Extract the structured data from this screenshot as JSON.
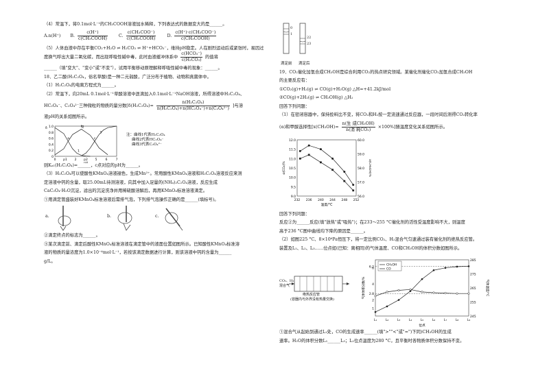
{
  "left": {
    "q4_intro": "（4）常温下，将0.1mol·L⁻¹的CH₃COOH溶液加水稀释，下列表达式的数据变大的是______。",
    "q4_opt_a": "A.n(H⁺)",
    "q4_opt_b_label": "B.",
    "q4_opt_b_num": "c(H⁺)",
    "q4_opt_b_den": "c(CH₃COOH)",
    "q4_opt_c_label": "C.",
    "q4_opt_c_num": "c(CH₃COO⁻)",
    "q4_opt_c_den": "c(CH₃COOH)",
    "q4_opt_d_label": "D.",
    "q4_opt_d_num": "c(H⁺)·c(CH₃COO⁻)",
    "q4_opt_d_den": "c(CH₃COOH)",
    "q5_line1": "（5）人体血液中存在平衡CO₂+H₂O ⇌ H₂CO₃ ⇌ H⁺+HCO₃⁻，维持pH稳定。人在剧烈运动后或紧张时，易因过度换气呼出大量二氧化碳，而出现呼吸性碱中毒，此时血液缓冲体系中",
    "q5_frac_num": "c(HCO₃⁻)",
    "q5_frac_den": "c(H₂CO₃)",
    "q5_line2": "的值将",
    "q5_line3": "______（填\"变大\"、\"变小\"或\"不变\"），试用平衡移动原理解释呼吸性碱中毒的现象：______。",
    "q18_title": "18．乙二酸(H₂C₂O₄，俗名草酸)是一种二元弱酸，广泛分布于植物、动物和真菌体中。",
    "q18_1": "（1）H₂C₂O₄的电离方程式为______。",
    "q18_2a": "（2）常温下，向20mL 0.1mol·L⁻¹草酸溶液中逐滴加入0.1mol·L⁻¹NaOH溶液，所得溶液中H₂C₂O₄、",
    "q18_2b": "HC₂O₄⁻、C₂O₄²⁻三种微粒的物质的量分数[δ(H₂C₂O₄)=",
    "q18_2b_num": "n(H₂C₂O₄)",
    "q18_2b_den": "n(H₂C₂O₄)+n(HC₂O₄⁻)+n(C₂O₄²⁻)",
    "q18_2c": "]与溶",
    "q18_2d": "液pH的关系如图所示。",
    "legend_title": "注：曲线1代表H₂C₂O₄",
    "legend_2": "曲线2代表HC₂O₄⁻",
    "legend_3": "曲线3代表C₂O₄²⁻",
    "q18_ka": "则Kₐ₁(H₂C₂O₄)=______，c点对应的pH为______。",
    "q18_3a": "（3）H₂C₂O₄可以使酸性KMnO₄溶液褪色，生成Mn²⁺。常用酸性KMnO₄溶液和H₂C₂O₄溶液反应来测",
    "q18_3b": "定溶液中钙的含量，取25.00mL待测溶液，向其中加入足量的(NH₄)₂C₂O₄溶液，反应生成",
    "q18_3c": "CaC₂O₄·H₂O沉淀，滤出的沉淀洗净并用稀硫酸溶解后，再用KMnO₄标准溶液滴定。",
    "q18_3d": "①用滴定管盛装好KMnO₄标准溶液后需排气泡，下列排气泡操作正确的是______(填标号)。",
    "img_a": "a.",
    "img_b": "b.",
    "img_c": "c.",
    "q18_3e": "②滴定终点的标志为______。",
    "q18_3f": "③某次滴定前、滴定后酸性KMnO₄标准溶液在滴定管中的液面位置如图所示。已知酸性KMnO₄标准溶",
    "q18_3g": "液的物质的量浓度为1.0×10⁻⁴mol·L⁻¹，若按该滴定数据进行计算，则该溶液中钙的含量为______",
    "q18_3h": "g/L。"
  },
  "right": {
    "burette_before": "滴定前",
    "burette_after": "滴定后",
    "burette_tick_0": "0",
    "burette_tick_1": "1",
    "burette_tick_22": "22",
    "burette_tick_23": "23",
    "q19_title": "19．CO₂催化加氢合成CH₃OH是综合利用CO₂的热点研究领域。某催化剂催化CO₂加氢合成CH₃OH",
    "q19_title2": "的主要反应有：",
    "r1": "①CO₂(g)+H₂(g) ⇌ CO(g)+H₂O(g) △H=+41.2kJ/mol",
    "r2": "②CO(g)+2H₂(g) ⇌ CH₃OH(g) △H₂",
    "q19_ask": "回答下列问题：",
    "q19_1a": "（1）在密闭容器中，保持投料比不变，将CO₂和H₂按一定流速通过反应器，一段时间后测得CO₂转化率",
    "q19_1b_pre": "(α)和甲醇选择性",
    "q19_1b_x": "x(CH₃OH)=",
    "q19_1b_num": "n(生 成CH₃OH)",
    "q19_1b_den": "n(消 耗CO₂)",
    "q19_1b_post": "×100%]随温度变化关系如图所示。",
    "q19_1c": "回答下列问题：",
    "q19_1d": "反应②为______反应(填\"放热\"或\"吸热\")；在233～255 °C催化剂的活性受温度影响不大，则温度",
    "q19_1e": "高于236 °C图中曲线均下降的原因是______。",
    "q19_2a": "（2）如图225 °C、8×10⁶Pa恒压下，将一定比例CO₂、H₂混合气匀速通过装有催化剂的绝热反应管。",
    "q19_2b": "装置及L₁、L₂、L₃……位点如(已知：离相同)的气体温度、CO和CH₃OH的体积分数如图所示。",
    "reactor_label": "绝热反应管",
    "reactor_note": "(容器内与外界没有热量交换)",
    "reactor_inlet": "CO₂、H₂",
    "reactor_inlet2": "混合气",
    "q19_2c": "①混合气从起始到通过L₁处，CO的生成速率______(填\">\"\"<\"或\"=\")下同)CH₃OH的生成",
    "q19_2d": "速率。H₂O的体积分数L₁______L₃；L₂位点温度为280 °C，且平衡时各物质体积分数保持不变。"
  },
  "chart_data": [
    {
      "type": "line",
      "title": "",
      "xlabel": "pH",
      "ylabel": "δ",
      "xlim": [
        0,
        7
      ],
      "ylim": [
        0,
        1.0
      ],
      "x_ticks": [
        "0",
        "p1",
        "2",
        "p2",
        "5",
        "6",
        "7"
      ],
      "y_ticks": [
        "0",
        "0.2",
        "0.4",
        "0.6",
        "0.8",
        "1.0"
      ],
      "point_labels": [
        "a",
        "b",
        "c"
      ],
      "series": [
        {
          "name": "1",
          "x": [
            0,
            1,
            1.5,
            2,
            2.5,
            3,
            3.5,
            4
          ],
          "y": [
            0.95,
            0.75,
            0.5,
            0.25,
            0.1,
            0.03,
            0.01,
            0
          ]
        },
        {
          "name": "2",
          "x": [
            0,
            1,
            1.5,
            2,
            3,
            4,
            4.5,
            5,
            6
          ],
          "y": [
            0.05,
            0.25,
            0.5,
            0.72,
            0.9,
            0.7,
            0.5,
            0.28,
            0.05
          ]
        },
        {
          "name": "3",
          "x": [
            3,
            3.5,
            4,
            4.5,
            5,
            5.5,
            6,
            7
          ],
          "y": [
            0.02,
            0.1,
            0.27,
            0.5,
            0.72,
            0.87,
            0.95,
            1.0
          ]
        }
      ]
    },
    {
      "type": "line",
      "title": "",
      "xlabel": "温度/°C",
      "ylabel": "α(CO₂)%",
      "y2label": "x(CH₃OH)%",
      "xlim": [
        232,
        252
      ],
      "ylim": [
        9.0,
        12.0
      ],
      "y2lim": [
        56.0,
        60.0
      ],
      "x_ticks": [
        "232",
        "236",
        "240",
        "244",
        "248",
        "252"
      ],
      "y_ticks": [
        "9.0",
        "9.5",
        "10.0",
        "10.5",
        "11.0",
        "11.5",
        "12.0"
      ],
      "y2_ticks": [
        "56.0",
        "57.0",
        "58.0",
        "59.0",
        "60.0"
      ],
      "series": [
        {
          "name": "α(CO₂)",
          "x": [
            233,
            236,
            240,
            244,
            248,
            251
          ],
          "y": [
            11.4,
            11.7,
            11.5,
            11.0,
            10.3,
            9.6
          ]
        },
        {
          "name": "x(CH₃OH)",
          "x": [
            233,
            236,
            240,
            244,
            248,
            251
          ],
          "y": [
            11.0,
            11.2,
            10.8,
            10.4,
            9.8,
            9.3
          ]
        }
      ]
    },
    {
      "type": "line",
      "title": "",
      "xlabel": "位点",
      "ylabel": "气体体积分数/%",
      "y2label": "气体温度/°C",
      "x_ticks": [
        "L₁",
        "L₂",
        "L₃",
        "L₄",
        "L₅",
        "L₆",
        "L₇",
        "L₈",
        "L₉"
      ],
      "y_ticks": [
        "1",
        "2",
        "2.8",
        "4",
        "6",
        "6.2"
      ],
      "y2_ticks": [
        "245",
        "255",
        "265",
        "275",
        "285"
      ],
      "series": [
        {
          "name": "CH₃OH",
          "x": [
            1,
            2,
            3,
            4,
            5,
            6,
            7,
            8,
            9
          ],
          "y": [
            0.5,
            1.2,
            2.0,
            3.1,
            4.6,
            5.7,
            6.0,
            6.15,
            6.2
          ]
        },
        {
          "name": "CO",
          "x": [
            1,
            2,
            3,
            4,
            5,
            6,
            7,
            8,
            9
          ],
          "y": [
            2.5,
            3.0,
            3.2,
            3.3,
            3.0,
            2.9,
            2.85,
            2.8,
            2.8
          ]
        }
      ]
    }
  ]
}
